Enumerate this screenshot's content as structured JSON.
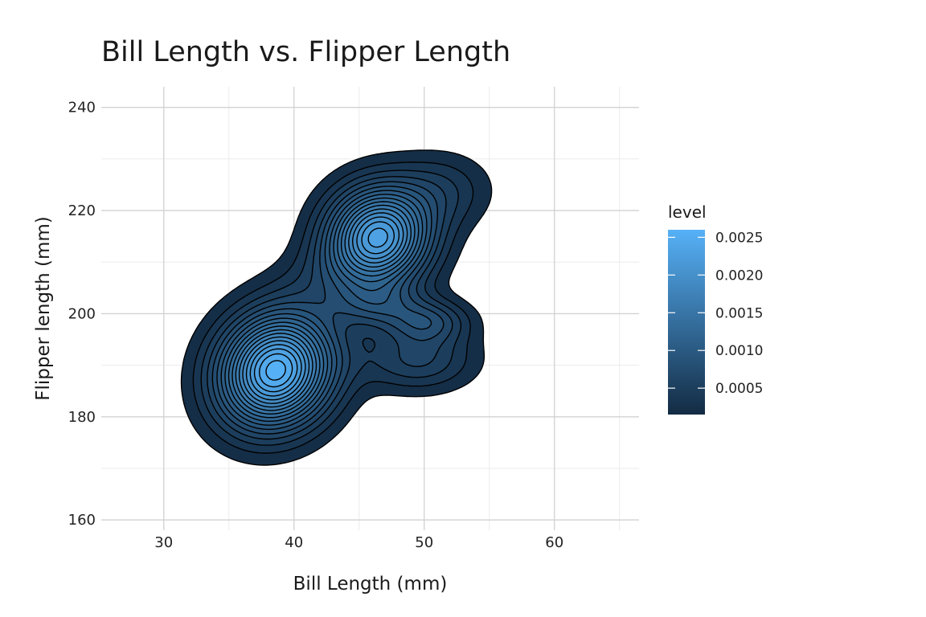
{
  "chart_data": {
    "type": "contour",
    "title": "Bill Length vs. Flipper Length",
    "xlabel": "Bill Length (mm)",
    "ylabel": "Flipper length (mm)",
    "xlim": [
      25.2,
      66.5
    ],
    "ylim": [
      158,
      244
    ],
    "xticks": [
      30,
      40,
      50,
      60
    ],
    "yticks": [
      160,
      180,
      200,
      220,
      240
    ],
    "grid": true,
    "legend": {
      "title": "level",
      "position": "right",
      "range": [
        0.00015,
        0.0026
      ],
      "ticks": [
        "0.0005",
        "0.0010",
        "0.0015",
        "0.0020",
        "0.0025"
      ],
      "tick_values": [
        0.0005,
        0.001,
        0.0015,
        0.002,
        0.0025
      ],
      "color_low": "#132b43",
      "color_high": "#56b1f7"
    },
    "peaks": [
      {
        "x": 38.9,
        "y": 189.0,
        "level": 0.0026
      },
      {
        "x": 46.5,
        "y": 214.5,
        "level": 0.0023
      },
      {
        "x": 46.3,
        "y": 201.8,
        "level": 0.0011
      },
      {
        "x": 50.3,
        "y": 198.5,
        "level": 0.0011
      }
    ],
    "contour_level_count": 18
  }
}
